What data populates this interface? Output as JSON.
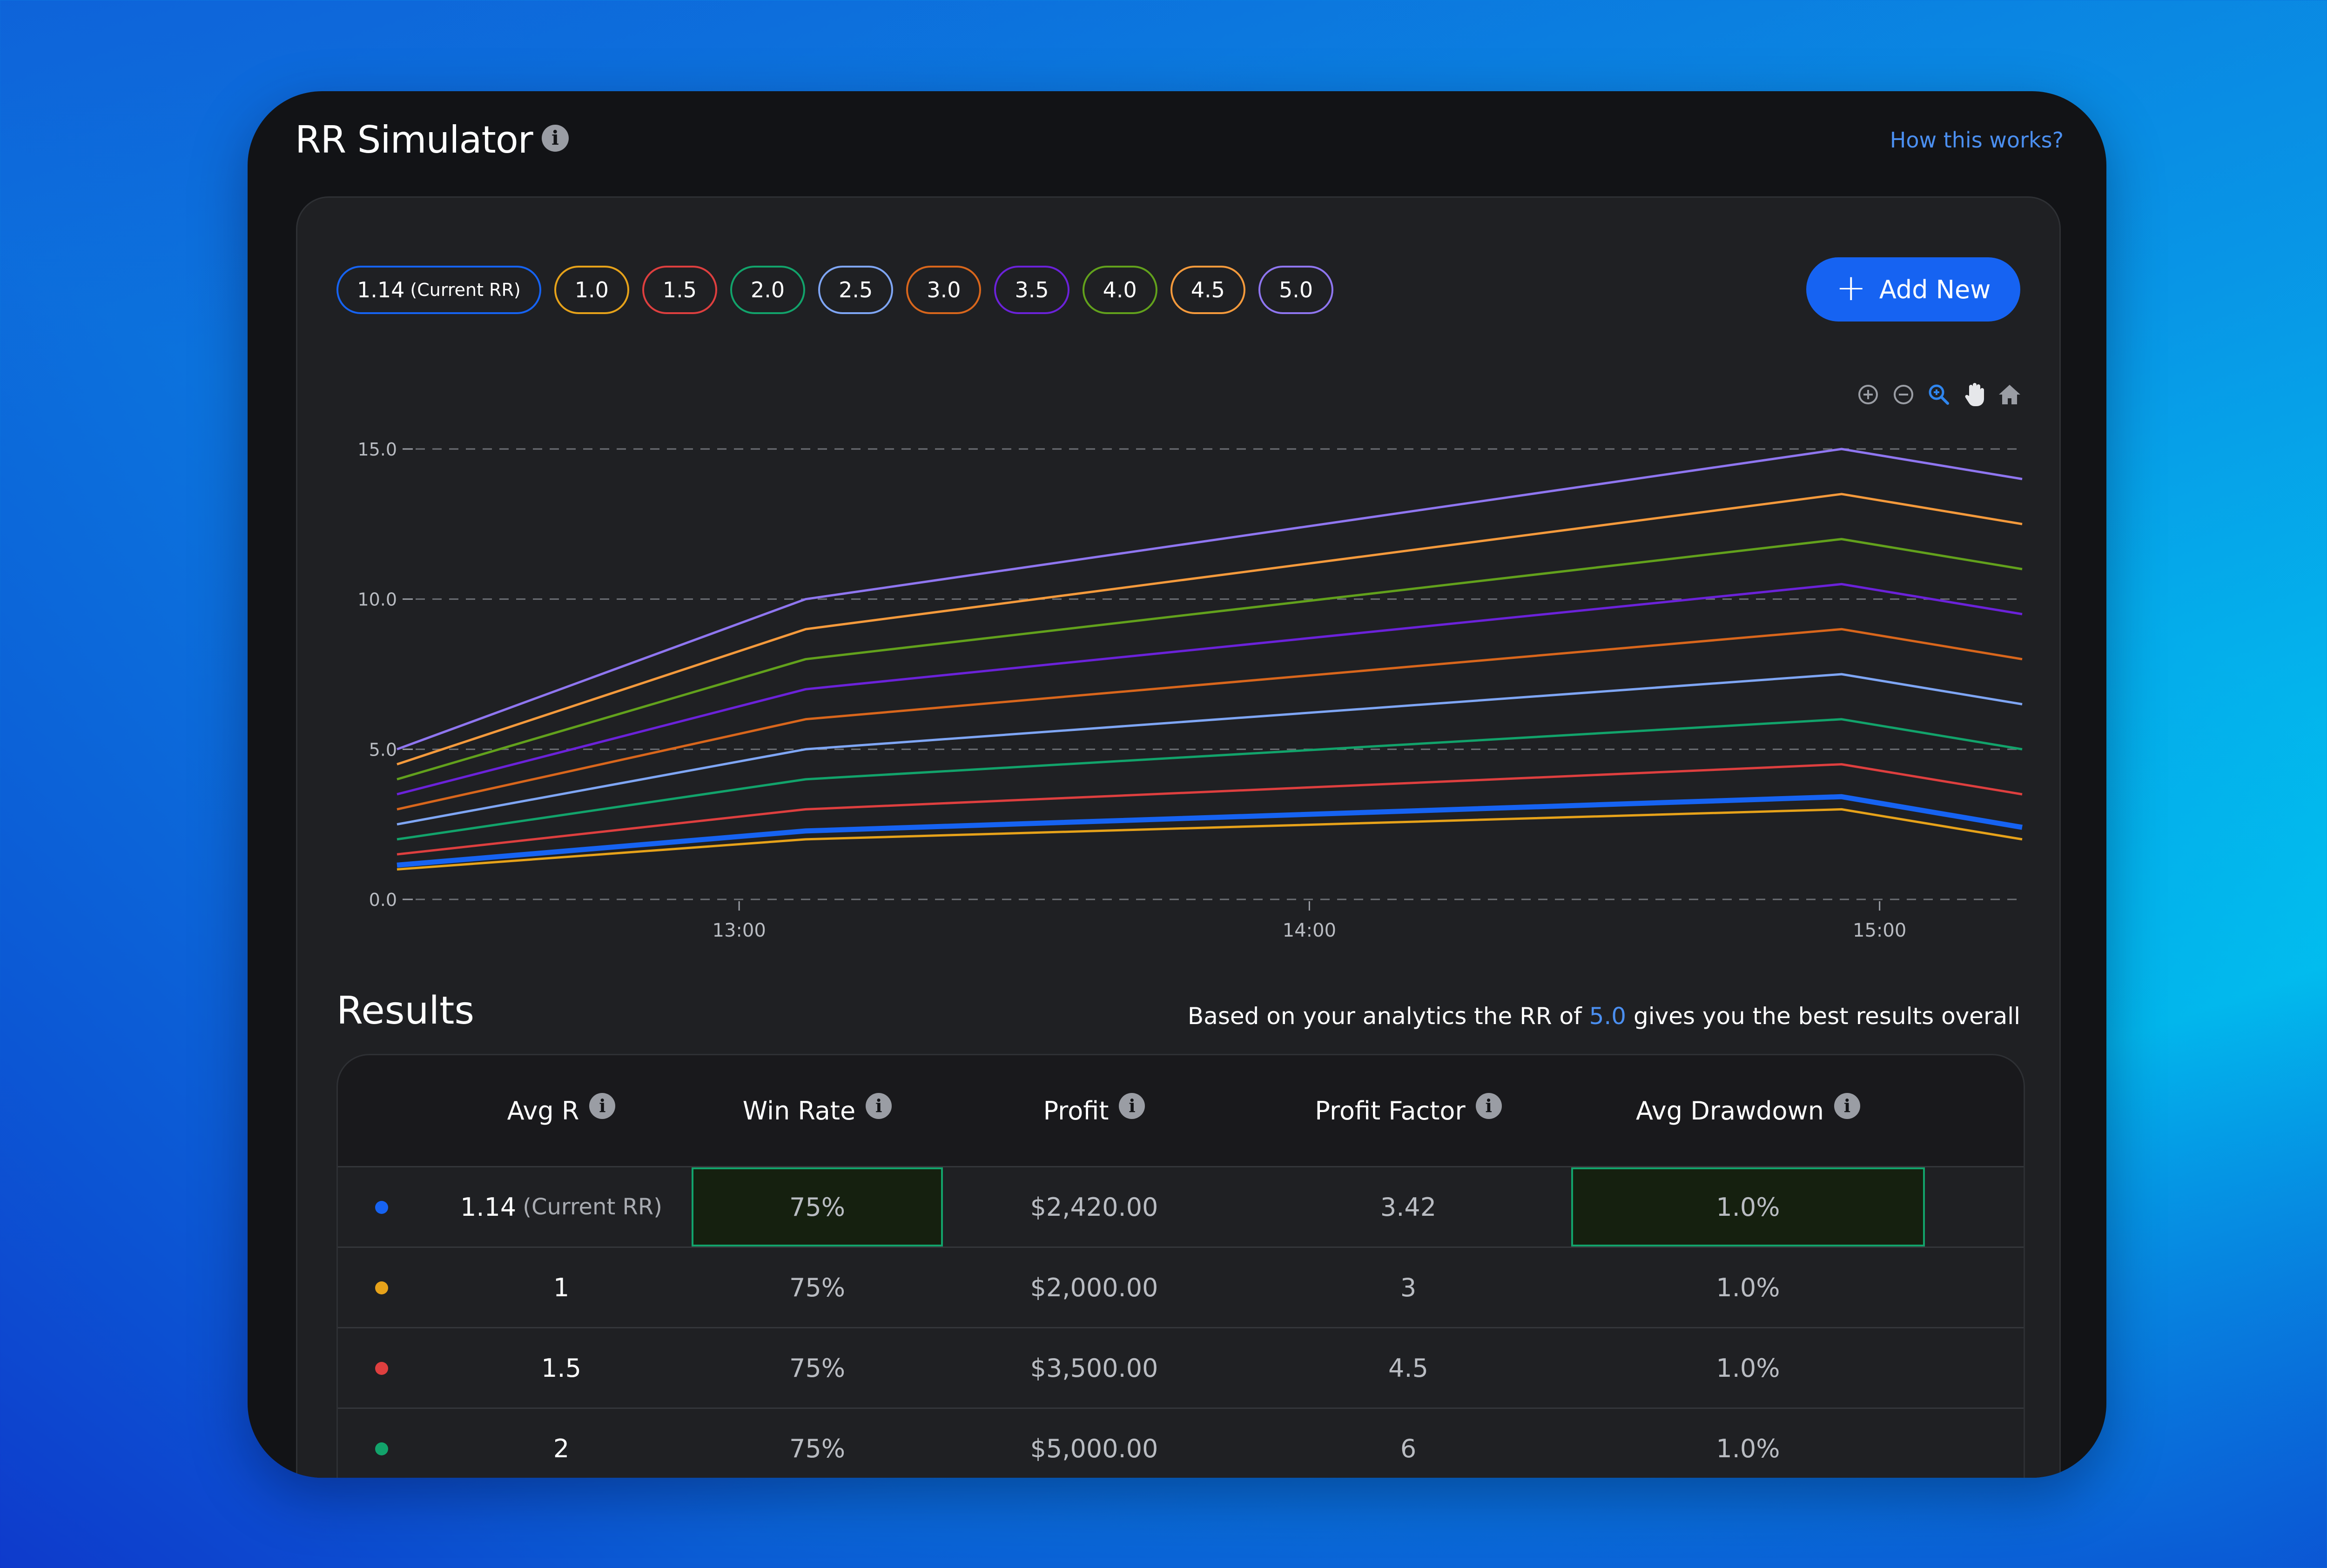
{
  "app": {
    "title": "RR Simulator",
    "help_link": "How this works?"
  },
  "rr_chips": [
    {
      "label": "1.14",
      "sub": "(Current RR)",
      "color": "#1663f2"
    },
    {
      "label": "1.0",
      "sub": "",
      "color": "#e6a21a"
    },
    {
      "label": "1.5",
      "sub": "",
      "color": "#de3f3f"
    },
    {
      "label": "2.0",
      "sub": "",
      "color": "#12a36b"
    },
    {
      "label": "2.5",
      "sub": "",
      "color": "#7fa6f5"
    },
    {
      "label": "3.0",
      "sub": "",
      "color": "#d8661c"
    },
    {
      "label": "3.5",
      "sub": "",
      "color": "#6b22d9"
    },
    {
      "label": "4.0",
      "sub": "",
      "color": "#62a11c"
    },
    {
      "label": "4.5",
      "sub": "",
      "color": "#f59a3c"
    },
    {
      "label": "5.0",
      "sub": "",
      "color": "#8f76f0"
    }
  ],
  "add_button": {
    "label": "Add New",
    "icon": "plus-icon"
  },
  "toolbar": [
    "zoom-in-icon",
    "zoom-out-icon",
    "zoom-select-icon",
    "pan-hand-icon",
    "home-reset-icon"
  ],
  "chart_data": {
    "type": "line",
    "title": "",
    "xlabel": "",
    "ylabel": "",
    "x": [
      "12:24",
      "13:07",
      "14:56",
      "15:15"
    ],
    "xticks": [
      "13:00",
      "14:00",
      "15:00"
    ],
    "yticks": [
      "0.0",
      "5.0",
      "10.0",
      "15.0"
    ],
    "ylim": [
      0,
      15
    ],
    "grid": true,
    "series": [
      {
        "values": [
          1.14,
          2.28,
          3.42,
          2.4
        ],
        "color": "#1663f2",
        "highlight": true
      },
      {
        "values": [
          1.0,
          2.0,
          3.0,
          2.0
        ],
        "color": "#e6a21a"
      },
      {
        "values": [
          1.5,
          3.0,
          4.5,
          3.5
        ],
        "color": "#de3f3f"
      },
      {
        "values": [
          2.0,
          4.0,
          6.0,
          5.0
        ],
        "color": "#12a36b"
      },
      {
        "values": [
          2.5,
          5.0,
          7.5,
          6.5
        ],
        "color": "#7fa6f5"
      },
      {
        "values": [
          3.0,
          6.0,
          9.0,
          8.0
        ],
        "color": "#d8661c"
      },
      {
        "values": [
          3.5,
          7.0,
          10.5,
          9.5
        ],
        "color": "#6b22d9"
      },
      {
        "values": [
          4.0,
          8.0,
          12.0,
          11.0
        ],
        "color": "#62a11c"
      },
      {
        "values": [
          4.5,
          9.0,
          13.5,
          12.5
        ],
        "color": "#f59a3c"
      },
      {
        "values": [
          5.0,
          10.0,
          15.0,
          14.0
        ],
        "color": "#8f76f0"
      }
    ]
  },
  "results": {
    "title": "Results",
    "note_prefix": "Based on your analytics the RR of ",
    "note_value": "5.0",
    "note_suffix": " gives you the best results overall",
    "columns": [
      "Avg R",
      "Win Rate",
      "Profit",
      "Profit Factor",
      "Avg Drawdown"
    ],
    "rows": [
      {
        "color": "#1663f2",
        "avg_r": "1.14",
        "sub": "(Current RR)",
        "win_rate": "75%",
        "profit": "$2,420.00",
        "profit_factor": "3.42",
        "drawdown": "1.0%",
        "best": true
      },
      {
        "color": "#e6a21a",
        "avg_r": "1",
        "sub": "",
        "win_rate": "75%",
        "profit": "$2,000.00",
        "profit_factor": "3",
        "drawdown": "1.0%",
        "best": false
      },
      {
        "color": "#de3f3f",
        "avg_r": "1.5",
        "sub": "",
        "win_rate": "75%",
        "profit": "$3,500.00",
        "profit_factor": "4.5",
        "drawdown": "1.0%",
        "best": false
      },
      {
        "color": "#12a36b",
        "avg_r": "2",
        "sub": "",
        "win_rate": "75%",
        "profit": "$5,000.00",
        "profit_factor": "6",
        "drawdown": "1.0%",
        "best": false
      }
    ]
  }
}
